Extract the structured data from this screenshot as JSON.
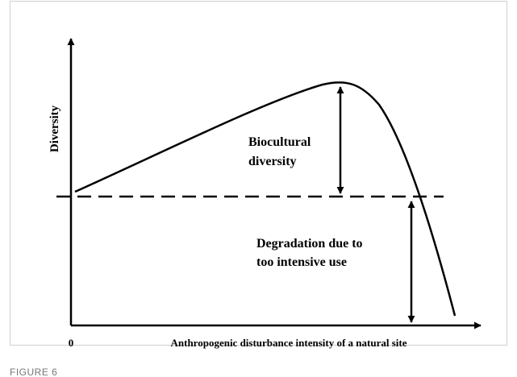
{
  "figure": {
    "y_axis_label": "Diversity",
    "x_axis_label": "Anthropogenic disturbance intensity of a natural site",
    "origin_label": "0",
    "upper_annotation": [
      "Biocultural",
      "diversity"
    ],
    "lower_annotation": [
      "Degradation due to",
      "too intensive use"
    ],
    "caption": "FIGURE 6"
  }
}
